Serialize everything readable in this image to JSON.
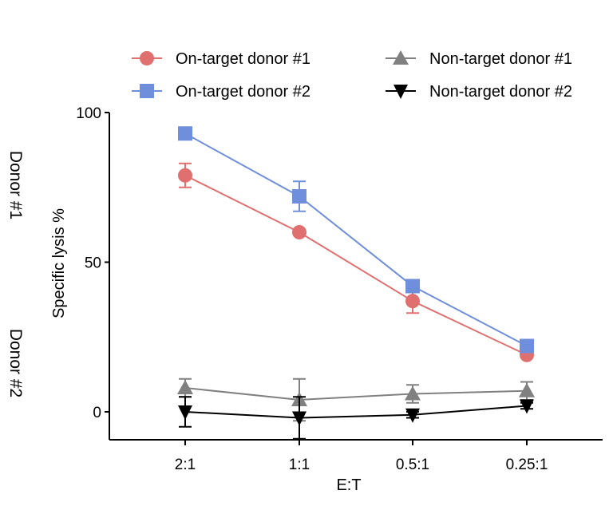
{
  "chart_data": {
    "type": "line",
    "title": "",
    "xlabel": "E:T",
    "ylabel": "Specific lysis %",
    "categories": [
      "2:1",
      "1:1",
      "0.5:1",
      "0.25:1"
    ],
    "ylim": [
      -8,
      100
    ],
    "yticks": [
      "0",
      "50",
      "100"
    ],
    "side_labels": [
      "Donor #1",
      "Donor #2"
    ],
    "legend_position": "top",
    "series": [
      {
        "name": "On-target donor #1",
        "color": "#e07070",
        "marker": "circle",
        "values": [
          79,
          60,
          37,
          19
        ],
        "errors": [
          4,
          0,
          4,
          0
        ]
      },
      {
        "name": "On-target donor #2",
        "color": "#6f8fdc",
        "marker": "square",
        "values": [
          93,
          72,
          42,
          22
        ],
        "errors": [
          0,
          5,
          0,
          0
        ]
      },
      {
        "name": "Non-target donor #1",
        "color": "#808080",
        "marker": "triangle-up",
        "values": [
          8,
          4,
          6,
          7
        ],
        "errors": [
          3,
          7,
          3,
          3
        ]
      },
      {
        "name": "Non-target donor #2",
        "color": "#000000",
        "marker": "triangle-down",
        "values": [
          0,
          -2,
          -1,
          2
        ],
        "errors": [
          5,
          7,
          1,
          1
        ]
      }
    ]
  }
}
